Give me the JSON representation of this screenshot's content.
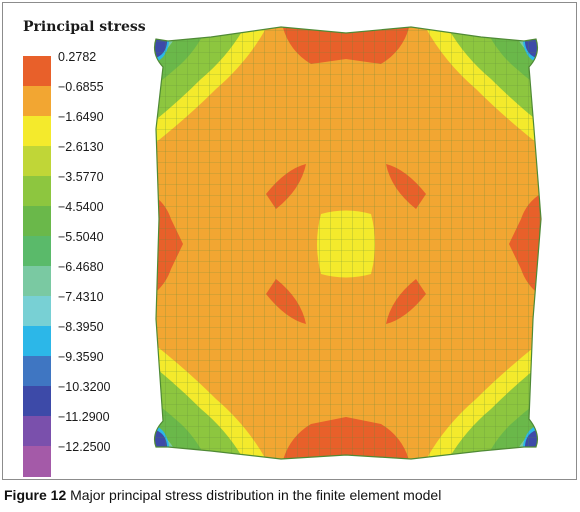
{
  "legend": {
    "title": "Principal stress",
    "items": [
      {
        "label": "0.2782",
        "color": "#e8602a"
      },
      {
        "label": "−0.6855",
        "color": "#f2a632"
      },
      {
        "label": "−1.6490",
        "color": "#f4ea2c"
      },
      {
        "label": "−2.6130",
        "color": "#c0d637"
      },
      {
        "label": "−3.5770",
        "color": "#8dc63f"
      },
      {
        "label": "−4.5400",
        "color": "#6ab84a"
      },
      {
        "label": "−5.5040",
        "color": "#5aba6a"
      },
      {
        "label": "−6.4680",
        "color": "#7ac9a2"
      },
      {
        "label": "−7.4310",
        "color": "#78d0d4"
      },
      {
        "label": "−8.3950",
        "color": "#2cb7e8"
      },
      {
        "label": "−9.3590",
        "color": "#3f76c2"
      },
      {
        "label": "−10.3200",
        "color": "#3d4aa8"
      },
      {
        "label": "−11.2900",
        "color": "#7a50ac"
      },
      {
        "label": "−12.2500",
        "color": "#a45aa8"
      }
    ]
  },
  "caption": {
    "label": "Figure 12",
    "text": " Major principal stress distribution in the finite element model"
  }
}
